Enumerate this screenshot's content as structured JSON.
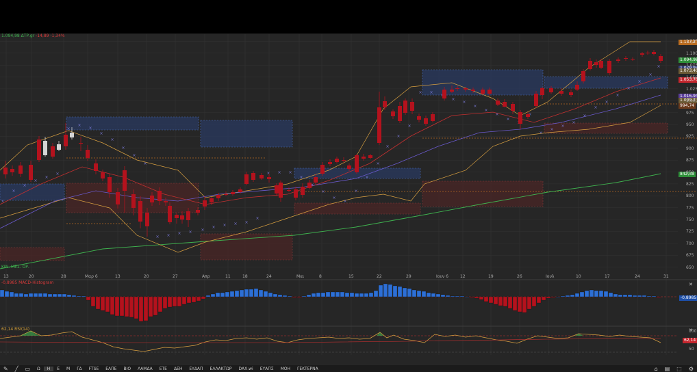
{
  "main_pane": {
    "quote_prefix": "1.094,98 ΔΤΡ.gr",
    "quote_change": "-14,89 -1,34%",
    "ma_label": "ΚΙΝ. ΜΕΣ. ΟΡ.",
    "price_ticks": [
      "1.125",
      "1.100",
      "1.075",
      "1.050",
      "1.025",
      "1.000",
      "975",
      "950",
      "925",
      "900",
      "875",
      "850",
      "825",
      "800",
      "775",
      "750",
      "725",
      "700",
      "675",
      "650"
    ],
    "x_ticks": [
      "13",
      "20",
      "28",
      "Μαρ 6",
      "13",
      "20",
      "27",
      "Απρ",
      "11",
      "18",
      "24",
      "Μαι",
      "8",
      "15",
      "22",
      "29",
      "Ιουν 6",
      "12",
      "19",
      "26",
      "Ιουλ",
      "10",
      "17",
      "24",
      "31"
    ],
    "price_tags": [
      {
        "text": "1.137,2",
        "color": "#b86b1f"
      },
      {
        "text": "1.094,98",
        "color": "#2f8f3a"
      },
      {
        "text": "1.079,93",
        "color": "#34407a"
      },
      {
        "text": "1.073,40",
        "color": "#6b5a35"
      },
      {
        "text": "1.053,70",
        "color": "#c4262e"
      },
      {
        "text": "1.016,94",
        "color": "#5a3d9a"
      },
      {
        "text": "1.009,7",
        "color": "#6b5a35"
      },
      {
        "text": "994,74",
        "color": "#6b3a1c"
      },
      {
        "text": "842,38",
        "color": "#2f8f3a"
      }
    ]
  },
  "macd_pane": {
    "title": "-0,8985 MACD-Histogram",
    "value_tag": "-0,8985",
    "value_color": "#2266cc"
  },
  "rsi_pane": {
    "title": "62,14 RSI(14)",
    "value_tag": "62,14",
    "value_color": "#c4262e",
    "ticks": [
      "100",
      "50"
    ]
  },
  "toolbar": {
    "tools": [
      "✎",
      "╱",
      "▭"
    ],
    "timeframes": [
      "Ω",
      "Η",
      "Ε",
      "Μ",
      "ΓΔ",
      "FTSE",
      "ΕΛΠΕ",
      "ΒΙΟ",
      "ΛΑΜΔΑ",
      "ΕΤΕ",
      "ΔΕΗ",
      "ΕΥΔΑΠ",
      "ΕΛΛΑΚΤΩΡ",
      "DAX.wi",
      "ΕΥΑΠΣ",
      "ΜΟΗ",
      "ΓΕΚΤΕΡΝΑ"
    ],
    "active_index": 1,
    "right_tools": [
      "⌂",
      "▤",
      "⬚",
      "⚙"
    ]
  }
}
